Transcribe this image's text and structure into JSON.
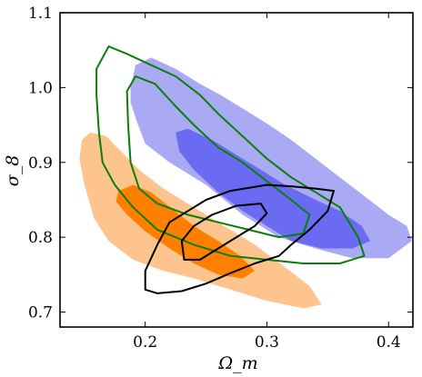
{
  "chart_data": {
    "type": "contour",
    "xlabel": "Ω_m",
    "ylabel": "σ_8",
    "xlim": [
      0.13,
      0.42
    ],
    "ylim": [
      0.68,
      1.1
    ],
    "xticks": [
      0.2,
      0.3,
      0.4
    ],
    "yticks": [
      0.7,
      0.8,
      0.9,
      1.0,
      1.1
    ],
    "xtick_labels": [
      "0.2",
      "0.3",
      "0.4"
    ],
    "ytick_labels": [
      "0.7",
      "0.8",
      "0.9",
      "1.0",
      "1.1"
    ],
    "series": [
      {
        "style": "filled",
        "color_outer": "#aaaaf4",
        "color_inner": "#6a6af2",
        "outer": [
          [
            0.188,
            1.0
          ],
          [
            0.192,
            1.03
          ],
          [
            0.205,
            1.04
          ],
          [
            0.225,
            1.025
          ],
          [
            0.245,
            1.005
          ],
          [
            0.262,
            0.99
          ],
          [
            0.28,
            0.972
          ],
          [
            0.3,
            0.952
          ],
          [
            0.32,
            0.93
          ],
          [
            0.34,
            0.905
          ],
          [
            0.36,
            0.88
          ],
          [
            0.38,
            0.855
          ],
          [
            0.4,
            0.83
          ],
          [
            0.415,
            0.815
          ],
          [
            0.419,
            0.795
          ],
          [
            0.4,
            0.772
          ],
          [
            0.37,
            0.772
          ],
          [
            0.34,
            0.785
          ],
          [
            0.31,
            0.8
          ],
          [
            0.28,
            0.83
          ],
          [
            0.25,
            0.87
          ],
          [
            0.22,
            0.9
          ],
          [
            0.2,
            0.925
          ],
          [
            0.193,
            0.955
          ],
          [
            0.188,
            0.98
          ]
        ],
        "inner": [
          [
            0.225,
            0.94
          ],
          [
            0.235,
            0.945
          ],
          [
            0.255,
            0.93
          ],
          [
            0.275,
            0.91
          ],
          [
            0.295,
            0.89
          ],
          [
            0.315,
            0.87
          ],
          [
            0.34,
            0.85
          ],
          [
            0.36,
            0.835
          ],
          [
            0.378,
            0.815
          ],
          [
            0.385,
            0.795
          ],
          [
            0.37,
            0.785
          ],
          [
            0.345,
            0.785
          ],
          [
            0.32,
            0.795
          ],
          [
            0.3,
            0.815
          ],
          [
            0.28,
            0.835
          ],
          [
            0.26,
            0.86
          ],
          [
            0.24,
            0.89
          ],
          [
            0.228,
            0.915
          ]
        ]
      },
      {
        "style": "filled",
        "color_outer": "#fdc48e",
        "color_inner": "#ff7f00",
        "outer": [
          [
            0.148,
            0.93
          ],
          [
            0.155,
            0.94
          ],
          [
            0.168,
            0.935
          ],
          [
            0.18,
            0.915
          ],
          [
            0.195,
            0.89
          ],
          [
            0.215,
            0.865
          ],
          [
            0.235,
            0.845
          ],
          [
            0.26,
            0.82
          ],
          [
            0.29,
            0.79
          ],
          [
            0.315,
            0.76
          ],
          [
            0.335,
            0.735
          ],
          [
            0.345,
            0.71
          ],
          [
            0.33,
            0.705
          ],
          [
            0.3,
            0.715
          ],
          [
            0.27,
            0.73
          ],
          [
            0.24,
            0.745
          ],
          [
            0.215,
            0.755
          ],
          [
            0.19,
            0.77
          ],
          [
            0.17,
            0.795
          ],
          [
            0.158,
            0.825
          ],
          [
            0.15,
            0.87
          ],
          [
            0.146,
            0.905
          ]
        ],
        "inner": [
          [
            0.178,
            0.862
          ],
          [
            0.19,
            0.87
          ],
          [
            0.205,
            0.86
          ],
          [
            0.222,
            0.838
          ],
          [
            0.24,
            0.815
          ],
          [
            0.26,
            0.795
          ],
          [
            0.278,
            0.775
          ],
          [
            0.29,
            0.755
          ],
          [
            0.28,
            0.745
          ],
          [
            0.26,
            0.75
          ],
          [
            0.24,
            0.765
          ],
          [
            0.22,
            0.785
          ],
          [
            0.2,
            0.808
          ],
          [
            0.185,
            0.83
          ],
          [
            0.176,
            0.848
          ]
        ]
      },
      {
        "style": "line",
        "color": "#087f08",
        "outer": [
          [
            0.16,
            1.025
          ],
          [
            0.17,
            1.055
          ],
          [
            0.185,
            1.045
          ],
          [
            0.205,
            1.03
          ],
          [
            0.225,
            1.015
          ],
          [
            0.245,
            0.99
          ],
          [
            0.26,
            0.965
          ],
          [
            0.28,
            0.935
          ],
          [
            0.3,
            0.905
          ],
          [
            0.32,
            0.88
          ],
          [
            0.34,
            0.86
          ],
          [
            0.36,
            0.84
          ],
          [
            0.375,
            0.8
          ],
          [
            0.38,
            0.775
          ],
          [
            0.36,
            0.765
          ],
          [
            0.33,
            0.765
          ],
          [
            0.3,
            0.77
          ],
          [
            0.27,
            0.775
          ],
          [
            0.24,
            0.79
          ],
          [
            0.21,
            0.81
          ],
          [
            0.19,
            0.84
          ],
          [
            0.175,
            0.87
          ],
          [
            0.165,
            0.9
          ],
          [
            0.162,
            0.94
          ],
          [
            0.16,
            0.99
          ]
        ],
        "inner": [
          [
            0.185,
            0.995
          ],
          [
            0.192,
            1.015
          ],
          [
            0.208,
            1.005
          ],
          [
            0.225,
            0.975
          ],
          [
            0.24,
            0.95
          ],
          [
            0.26,
            0.92
          ],
          [
            0.28,
            0.9
          ],
          [
            0.3,
            0.875
          ],
          [
            0.32,
            0.85
          ],
          [
            0.335,
            0.83
          ],
          [
            0.33,
            0.805
          ],
          [
            0.31,
            0.8
          ],
          [
            0.285,
            0.81
          ],
          [
            0.26,
            0.82
          ],
          [
            0.235,
            0.83
          ],
          [
            0.21,
            0.845
          ],
          [
            0.195,
            0.865
          ],
          [
            0.188,
            0.9
          ],
          [
            0.186,
            0.95
          ]
        ]
      },
      {
        "style": "line",
        "color": "#000000",
        "outer": [
          [
            0.21,
            0.79
          ],
          [
            0.22,
            0.82
          ],
          [
            0.235,
            0.835
          ],
          [
            0.25,
            0.85
          ],
          [
            0.27,
            0.862
          ],
          [
            0.3,
            0.87
          ],
          [
            0.32,
            0.868
          ],
          [
            0.34,
            0.865
          ],
          [
            0.355,
            0.862
          ],
          [
            0.35,
            0.835
          ],
          [
            0.335,
            0.81
          ],
          [
            0.32,
            0.79
          ],
          [
            0.31,
            0.775
          ],
          [
            0.29,
            0.765
          ],
          [
            0.27,
            0.752
          ],
          [
            0.25,
            0.738
          ],
          [
            0.23,
            0.728
          ],
          [
            0.21,
            0.725
          ],
          [
            0.2,
            0.73
          ],
          [
            0.2,
            0.755
          ]
        ],
        "inner": [
          [
            0.23,
            0.795
          ],
          [
            0.24,
            0.815
          ],
          [
            0.255,
            0.83
          ],
          [
            0.275,
            0.842
          ],
          [
            0.295,
            0.845
          ],
          [
            0.3,
            0.832
          ],
          [
            0.29,
            0.815
          ],
          [
            0.275,
            0.8
          ],
          [
            0.26,
            0.785
          ],
          [
            0.245,
            0.77
          ],
          [
            0.232,
            0.77
          ]
        ]
      }
    ]
  }
}
